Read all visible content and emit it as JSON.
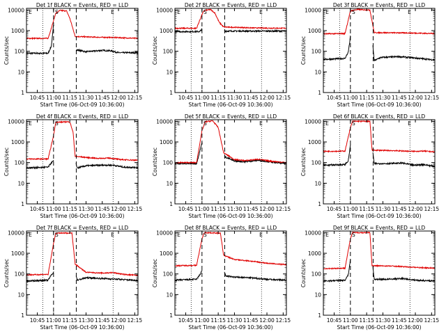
{
  "figure": {
    "xtick_labels": [
      "10:45",
      "11:00",
      "11:15",
      "11:30",
      "11:45",
      "12:00",
      "12:15"
    ],
    "xtick_minutes": [
      45,
      60,
      75,
      90,
      105,
      120,
      135
    ],
    "ytick_labels": [
      "1",
      "10",
      "100",
      "1000",
      "10000"
    ],
    "x_range_minutes": [
      35,
      138
    ],
    "y_range": [
      1,
      12000
    ],
    "y_scale": "log",
    "marker_labels": [
      "E",
      "S",
      "E"
    ],
    "marker_minutes_dotted": [
      50,
      115
    ],
    "colors": {
      "events": "#000000",
      "lld": "#e00000",
      "axes": "#000000"
    }
  },
  "chart_data": [
    {
      "type": "line",
      "title": "Det 1f BLACK = Events, RED = LLD",
      "xlabel": "Start Time (06-Oct-09 10:36:00)",
      "ylabel": "Counts/sec",
      "xlim": [
        "10:35",
        "12:18"
      ],
      "ylim": [
        1,
        12000
      ],
      "scale": "log",
      "s_marker": "11:04",
      "dotted": [
        "10:50",
        "11:55"
      ],
      "dashed": [
        "11:00",
        "11:21"
      ],
      "series": [
        {
          "name": "Events",
          "color": "#000000",
          "gap": [
            "11:00",
            "11:21"
          ],
          "points": [
            [
              35,
              80
            ],
            [
              55,
              80
            ],
            [
              58,
              180
            ],
            [
              60,
              1800
            ],
            [
              70,
              1600
            ],
            [
              77,
              1500
            ],
            [
              80,
              120
            ],
            [
              90,
              95
            ],
            [
              105,
              110
            ],
            [
              113,
              105
            ],
            [
              120,
              85
            ],
            [
              138,
              85
            ]
          ]
        },
        {
          "name": "LLD",
          "color": "#e00000",
          "points": [
            [
              35,
              420
            ],
            [
              55,
              420
            ],
            [
              60,
              3000
            ],
            [
              62,
              7000
            ],
            [
              66,
              9500
            ],
            [
              72,
              9000
            ],
            [
              75,
              4000
            ],
            [
              78,
              1200
            ],
            [
              80,
              520
            ],
            [
              100,
              480
            ],
            [
              118,
              460
            ],
            [
              138,
              420
            ]
          ]
        }
      ]
    },
    {
      "type": "line",
      "title": "Det 2f BLACK = Events, RED = LLD",
      "xlabel": "Start Time (06-Oct-09 10:36:00)",
      "ylabel": "Counts/sec",
      "xlim": [
        "10:35",
        "12:18"
      ],
      "ylim": [
        1,
        12000
      ],
      "scale": "log",
      "s_marker": "11:04",
      "dotted": [
        "10:50",
        "11:55"
      ],
      "dashed": [
        "11:00",
        "11:21"
      ],
      "series": [
        {
          "name": "Events",
          "color": "#000000",
          "gap": [
            "11:00",
            "11:21"
          ],
          "points": [
            [
              35,
              900
            ],
            [
              55,
              900
            ],
            [
              58,
              900
            ],
            [
              60,
              1200
            ],
            [
              80,
              1200
            ],
            [
              81,
              950
            ],
            [
              138,
              950
            ]
          ]
        },
        {
          "name": "LLD",
          "color": "#e00000",
          "points": [
            [
              35,
              1300
            ],
            [
              55,
              1300
            ],
            [
              60,
              6000
            ],
            [
              62,
              9500
            ],
            [
              68,
              10500
            ],
            [
              72,
              7000
            ],
            [
              76,
              2500
            ],
            [
              80,
              1500
            ],
            [
              110,
              1350
            ],
            [
              138,
              1300
            ]
          ]
        }
      ]
    },
    {
      "type": "line",
      "title": "Det 3f BLACK = Events, RED = LLD",
      "xlabel": "Start Time (06-Oct-09 10:36:00)",
      "ylabel": "Counts/sec",
      "xlim": [
        "10:35",
        "12:18"
      ],
      "ylim": [
        1,
        12000
      ],
      "scale": "log",
      "s_marker": "11:04",
      "dotted": [
        "10:50",
        "11:55"
      ],
      "dashed": [
        "11:00",
        "11:21"
      ],
      "series": [
        {
          "name": "Events",
          "color": "#000000",
          "gap": [
            "11:00",
            "11:21"
          ],
          "points": [
            [
              35,
              40
            ],
            [
              55,
              45
            ],
            [
              58,
              90
            ],
            [
              60,
              500
            ],
            [
              80,
              500
            ],
            [
              82,
              35
            ],
            [
              88,
              50
            ],
            [
              105,
              55
            ],
            [
              115,
              50
            ],
            [
              138,
              38
            ]
          ]
        },
        {
          "name": "LLD",
          "color": "#e00000",
          "points": [
            [
              35,
              700
            ],
            [
              55,
              720
            ],
            [
              60,
              9000
            ],
            [
              66,
              10500
            ],
            [
              78,
              10000
            ],
            [
              82,
              800
            ],
            [
              110,
              780
            ],
            [
              138,
              720
            ]
          ]
        }
      ]
    },
    {
      "type": "line",
      "title": "Det 4f BLACK = Events, RED = LLD",
      "xlabel": "Start Time (06-Oct-09 10:36:00)",
      "ylabel": "Counts/sec",
      "xlim": [
        "10:35",
        "12:18"
      ],
      "ylim": [
        1,
        12000
      ],
      "scale": "log",
      "s_marker": "11:04",
      "dotted": [
        "10:50",
        "11:55"
      ],
      "dashed": [
        "11:00",
        "11:21"
      ],
      "series": [
        {
          "name": "Events",
          "color": "#000000",
          "gap": [
            "11:00",
            "11:21"
          ],
          "points": [
            [
              35,
              55
            ],
            [
              55,
              60
            ],
            [
              58,
              100
            ],
            [
              60,
              120
            ],
            [
              80,
              120
            ],
            [
              82,
              55
            ],
            [
              90,
              70
            ],
            [
              105,
              75
            ],
            [
              115,
              75
            ],
            [
              125,
              60
            ],
            [
              138,
              58
            ]
          ]
        },
        {
          "name": "LLD",
          "color": "#e00000",
          "points": [
            [
              35,
              150
            ],
            [
              55,
              150
            ],
            [
              60,
              2000
            ],
            [
              62,
              9000
            ],
            [
              75,
              9500
            ],
            [
              78,
              3000
            ],
            [
              80,
              200
            ],
            [
              100,
              160
            ],
            [
              112,
              165
            ],
            [
              122,
              140
            ],
            [
              138,
              130
            ]
          ]
        }
      ]
    },
    {
      "type": "line",
      "title": "Det 5f BLACK = Events, RED = LLD",
      "xlabel": "Start Time (06-Oct-09 10:36:00)",
      "ylabel": "Counts/sec",
      "xlim": [
        "10:35",
        "12:18"
      ],
      "ylim": [
        1,
        12000
      ],
      "scale": "log",
      "s_marker": "11:04",
      "dotted": [
        "10:50",
        "11:55"
      ],
      "dashed": [
        "11:00",
        "11:21"
      ],
      "series": [
        {
          "name": "Events",
          "color": "#000000",
          "gap": [
            "11:00",
            "11:21"
          ],
          "points": [
            [
              35,
              90
            ],
            [
              55,
              90
            ],
            [
              60,
              900
            ],
            [
              70,
              800
            ],
            [
              80,
              200
            ],
            [
              90,
              120
            ],
            [
              100,
              110
            ],
            [
              112,
              130
            ],
            [
              125,
              105
            ],
            [
              138,
              90
            ]
          ]
        },
        {
          "name": "LLD",
          "color": "#e00000",
          "points": [
            [
              35,
              100
            ],
            [
              55,
              100
            ],
            [
              60,
              3500
            ],
            [
              63,
              9500
            ],
            [
              70,
              10500
            ],
            [
              75,
              5000
            ],
            [
              80,
              300
            ],
            [
              90,
              140
            ],
            [
              100,
              125
            ],
            [
              112,
              145
            ],
            [
              125,
              115
            ],
            [
              138,
              100
            ]
          ]
        }
      ]
    },
    {
      "type": "line",
      "title": "Det 6f BLACK = Events, RED = LLD",
      "xlabel": "Start Time (06-Oct-09 10:36:00)",
      "ylabel": "Counts/sec",
      "xlim": [
        "10:35",
        "12:18"
      ],
      "ylim": [
        1,
        12000
      ],
      "scale": "log",
      "s_marker": "11:04",
      "dotted": [
        "10:50",
        "11:55"
      ],
      "dashed": [
        "11:00",
        "11:21"
      ],
      "series": [
        {
          "name": "Events",
          "color": "#000000",
          "gap": [
            "11:00",
            "11:21"
          ],
          "points": [
            [
              35,
              75
            ],
            [
              55,
              80
            ],
            [
              58,
              120
            ],
            [
              60,
              700
            ],
            [
              80,
              700
            ],
            [
              82,
              90
            ],
            [
              95,
              90
            ],
            [
              108,
              95
            ],
            [
              118,
              75
            ],
            [
              128,
              80
            ],
            [
              138,
              65
            ]
          ]
        },
        {
          "name": "LLD",
          "color": "#e00000",
          "points": [
            [
              35,
              350
            ],
            [
              55,
              360
            ],
            [
              60,
              5000
            ],
            [
              62,
              10000
            ],
            [
              78,
              10000
            ],
            [
              80,
              400
            ],
            [
              100,
              380
            ],
            [
              118,
              350
            ],
            [
              128,
              360
            ],
            [
              138,
              330
            ]
          ]
        }
      ]
    },
    {
      "type": "line",
      "title": "Det 7f BLACK = Events, RED = LLD",
      "xlabel": "Start Time (06-Oct-09 10:36:00)",
      "ylabel": "Counts/sec",
      "xlim": [
        "10:35",
        "12:18"
      ],
      "ylim": [
        1,
        12000
      ],
      "scale": "log",
      "s_marker": "11:04",
      "dotted": [
        "10:50",
        "11:55"
      ],
      "dashed": [
        "11:00",
        "11:21"
      ],
      "series": [
        {
          "name": "Events",
          "color": "#000000",
          "gap": [
            "11:00",
            "11:21"
          ],
          "points": [
            [
              35,
              45
            ],
            [
              55,
              50
            ],
            [
              58,
              90
            ],
            [
              60,
              120
            ],
            [
              80,
              120
            ],
            [
              82,
              50
            ],
            [
              90,
              65
            ],
            [
              105,
              60
            ],
            [
              120,
              55
            ],
            [
              138,
              48
            ]
          ]
        },
        {
          "name": "LLD",
          "color": "#e00000",
          "points": [
            [
              35,
              90
            ],
            [
              55,
              95
            ],
            [
              60,
              3000
            ],
            [
              62,
              9500
            ],
            [
              77,
              9500
            ],
            [
              80,
              300
            ],
            [
              90,
              120
            ],
            [
              105,
              110
            ],
            [
              115,
              115
            ],
            [
              125,
              95
            ],
            [
              138,
              85
            ]
          ]
        }
      ]
    },
    {
      "type": "line",
      "title": "Det 8f BLACK = Events, RED = LLD",
      "xlabel": "Start Time (06-Oct-09 10:36:00)",
      "ylabel": "Counts/sec",
      "xlim": [
        "10:35",
        "12:18"
      ],
      "ylim": [
        1,
        12000
      ],
      "scale": "log",
      "s_marker": "11:04",
      "dotted": [
        "10:50",
        "11:55"
      ],
      "dashed": [
        "11:00",
        "11:21"
      ],
      "series": [
        {
          "name": "Events",
          "color": "#000000",
          "gap": [
            "11:00",
            "11:21"
          ],
          "points": [
            [
              35,
              50
            ],
            [
              55,
              55
            ],
            [
              58,
              90
            ],
            [
              60,
              150
            ],
            [
              80,
              150
            ],
            [
              82,
              80
            ],
            [
              90,
              70
            ],
            [
              105,
              65
            ],
            [
              120,
              55
            ],
            [
              138,
              50
            ]
          ]
        },
        {
          "name": "LLD",
          "color": "#e00000",
          "points": [
            [
              35,
              250
            ],
            [
              55,
              260
            ],
            [
              60,
              5000
            ],
            [
              62,
              10000
            ],
            [
              77,
              9500
            ],
            [
              80,
              800
            ],
            [
              90,
              500
            ],
            [
              105,
              420
            ],
            [
              120,
              330
            ],
            [
              138,
              280
            ]
          ]
        }
      ]
    },
    {
      "type": "line",
      "title": "Det 9f BLACK = Events, RED = LLD",
      "xlabel": "Start Time (06-Oct-09 10:36:00)",
      "ylabel": "Counts/sec",
      "xlim": [
        "10:35",
        "12:18"
      ],
      "ylim": [
        1,
        12000
      ],
      "scale": "log",
      "s_marker": "11:04",
      "dotted": [
        "10:50",
        "11:55"
      ],
      "dashed": [
        "11:00",
        "11:21"
      ],
      "series": [
        {
          "name": "Events",
          "color": "#000000",
          "gap": [
            "11:00",
            "11:21"
          ],
          "points": [
            [
              35,
              45
            ],
            [
              55,
              50
            ],
            [
              58,
              90
            ],
            [
              60,
              500
            ],
            [
              80,
              500
            ],
            [
              82,
              55
            ],
            [
              95,
              55
            ],
            [
              108,
              60
            ],
            [
              120,
              50
            ],
            [
              138,
              45
            ]
          ]
        },
        {
          "name": "LLD",
          "color": "#e00000",
          "points": [
            [
              35,
              180
            ],
            [
              55,
              190
            ],
            [
              60,
              5000
            ],
            [
              62,
              10000
            ],
            [
              78,
              10000
            ],
            [
              80,
              250
            ],
            [
              100,
              240
            ],
            [
              118,
              210
            ],
            [
              138,
              190
            ]
          ]
        }
      ]
    }
  ]
}
